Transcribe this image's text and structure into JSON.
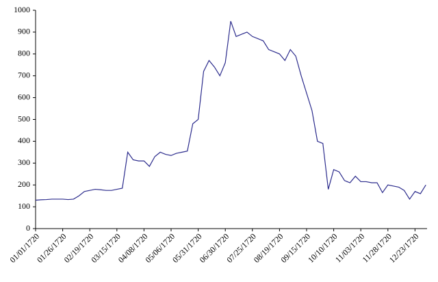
{
  "chart_data": {
    "type": "line",
    "categories": [
      "01/01/1720",
      null,
      null,
      null,
      null,
      "01/26/1720",
      null,
      null,
      null,
      null,
      "02/19/1720",
      null,
      null,
      null,
      null,
      "03/15/1720",
      null,
      null,
      null,
      null,
      "04/08/1720",
      null,
      null,
      null,
      null,
      "05/06/1720",
      null,
      null,
      null,
      null,
      "05/31/1720",
      null,
      null,
      null,
      null,
      "06/30/1720",
      null,
      null,
      null,
      null,
      "07/25/1720",
      null,
      null,
      null,
      null,
      "08/19/1720",
      null,
      null,
      null,
      null,
      "09/15/1720",
      null,
      null,
      null,
      null,
      "10/10/1720",
      null,
      null,
      null,
      null,
      "11/03/1720",
      null,
      null,
      null,
      null,
      "11/28/1720",
      null,
      null,
      null,
      null,
      "12/23/1720",
      null,
      null
    ],
    "values": [
      130,
      132,
      133,
      135,
      135,
      135,
      133,
      135,
      150,
      170,
      175,
      180,
      178,
      175,
      175,
      180,
      185,
      350,
      315,
      310,
      310,
      285,
      330,
      350,
      340,
      335,
      345,
      350,
      355,
      480,
      500,
      720,
      770,
      740,
      700,
      760,
      950,
      880,
      890,
      900,
      880,
      870,
      860,
      820,
      810,
      800,
      770,
      820,
      790,
      700,
      620,
      540,
      400,
      390,
      180,
      270,
      260,
      220,
      210,
      240,
      215,
      215,
      210,
      210,
      165,
      200,
      195,
      190,
      175,
      135,
      170,
      160,
      200
    ],
    "color": "#2b2b8c",
    "ylim": [
      0,
      1000
    ],
    "yticks": [
      0,
      100,
      200,
      300,
      400,
      500,
      600,
      700,
      800,
      900,
      1000
    ],
    "grid": false
  }
}
